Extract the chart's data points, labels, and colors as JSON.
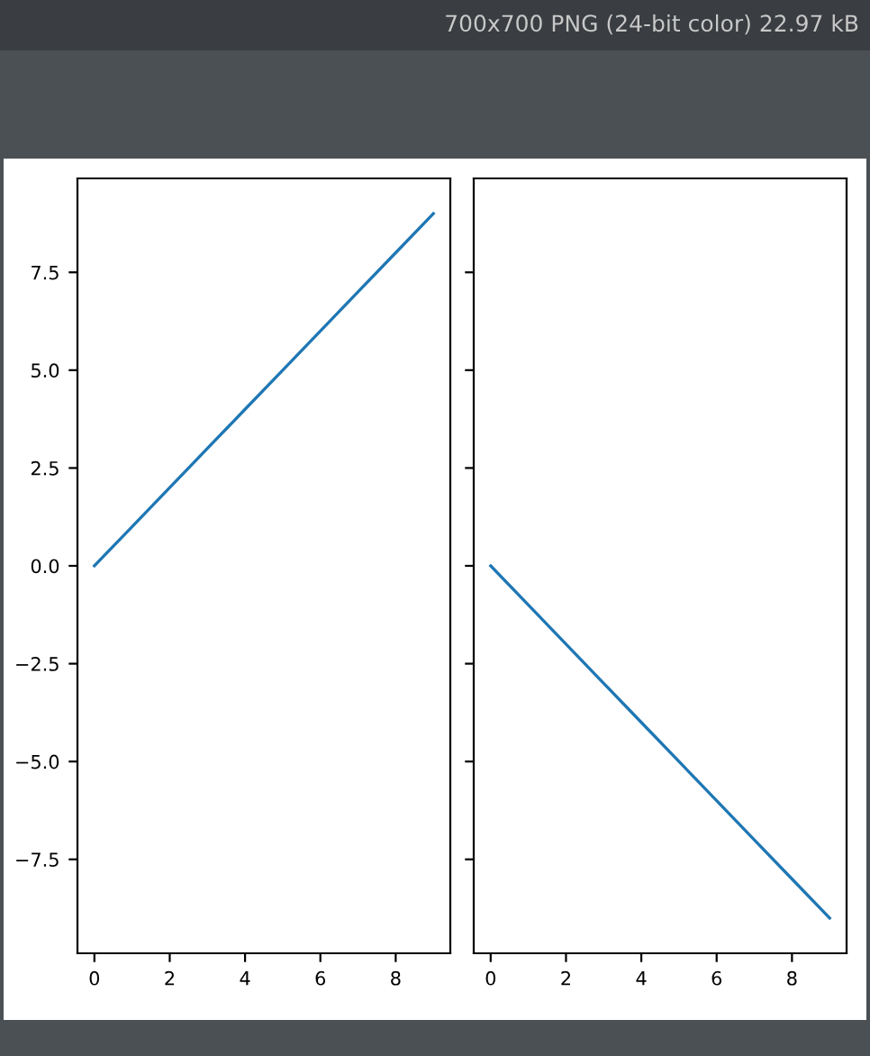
{
  "chart_data": [
    {
      "type": "line",
      "annotations": [
        "700x700 PNG (24-bit color) 22.97 kB"
      ],
      "x": [
        0,
        1,
        2,
        3,
        4,
        5,
        6,
        7,
        8,
        9
      ],
      "series": [
        {
          "color": "#1f77b4",
          "values": [
            0,
            1,
            2,
            3,
            4,
            5,
            6,
            7,
            8,
            9
          ]
        }
      ],
      "xlim": [
        -0.45,
        9.45
      ],
      "ylim": [
        -9.9,
        9.9
      ],
      "xticks": [
        0,
        2,
        4,
        6,
        8
      ],
      "yticks": [
        {
          "value": -7.5,
          "label": "−7.5"
        },
        {
          "value": -5,
          "label": "−5.0"
        },
        {
          "value": -2.5,
          "label": "−2.5"
        },
        {
          "value": 0,
          "label": "0.0"
        },
        2.5,
        {
          "value": 5,
          "label": "5.0"
        },
        7.5
      ],
      "grid": false
    },
    {
      "type": "line",
      "x": [
        0,
        1,
        2,
        3,
        4,
        5,
        6,
        7,
        8,
        9
      ],
      "series": [
        {
          "color": "#1f77b4",
          "values": [
            0,
            -1,
            -2,
            -3,
            -4,
            -5,
            -6,
            -7,
            -8,
            -9
          ]
        }
      ],
      "xlim": [
        -0.45,
        9.45
      ],
      "ylim": [
        -9.9,
        9.9
      ],
      "xticks": [
        0,
        2,
        4,
        6,
        8
      ],
      "yticks": [
        {
          "value": -7.5,
          "label": null
        },
        {
          "value": -5,
          "label": null
        },
        {
          "value": -2.5,
          "label": null
        },
        {
          "value": 0,
          "label": null
        },
        {
          "value": 2.5,
          "label": null
        },
        {
          "value": 5,
          "label": null
        },
        {
          "value": 7.5,
          "label": null
        }
      ],
      "grid": false,
      "tick_labels": "x"
    }
  ]
}
